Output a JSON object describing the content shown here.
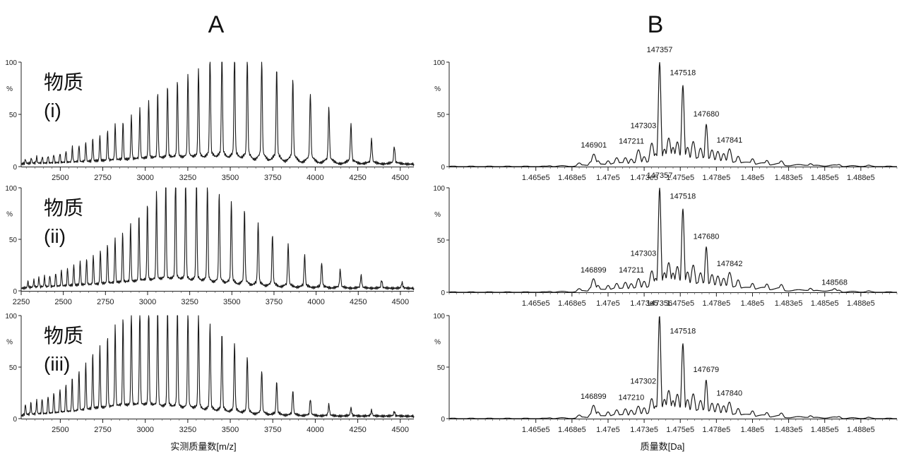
{
  "figure": {
    "panel_labels": [
      "A",
      "B"
    ],
    "xlabel_left": "实测质量数[m/z]",
    "xlabel_right": "质量数[Da]",
    "y_unit": "%",
    "y_ticks": [
      "0",
      "50",
      "100"
    ]
  },
  "chart_data": [
    {
      "panel": "A",
      "type": "line",
      "chart_title": "物质 (i)",
      "label_lines": [
        "物质",
        "(i)"
      ],
      "xlim": [
        2270,
        4580
      ],
      "ylim": [
        0,
        100
      ],
      "xticks": [
        "2500",
        "2750",
        "3000",
        "3250",
        "3500",
        "3750",
        "4000",
        "4250",
        "4500"
      ],
      "xtick_values": [
        2500,
        2750,
        3000,
        3250,
        3500,
        3750,
        4000,
        4250,
        4500
      ],
      "series": [
        {
          "x": [
            2295,
            2330,
            2361,
            2394,
            2428,
            2462,
            2498,
            2533,
            2571,
            2610,
            2650,
            2691,
            2733,
            2778,
            2823,
            2869,
            2918,
            2968,
            3020,
            3073,
            3131,
            3189,
            3251,
            3313,
            3381,
            3451,
            3525,
            3600,
            3685,
            3773,
            3868,
            3971,
            4080,
            4210,
            4331,
            4465
          ],
          "y": [
            4,
            5,
            6,
            6,
            7,
            8,
            9,
            11,
            14,
            16,
            18,
            21,
            24,
            28,
            33,
            36,
            41,
            47,
            54,
            60,
            67,
            72,
            78,
            82,
            95,
            100,
            97,
            92,
            90,
            82,
            73,
            61,
            48,
            34,
            21,
            15
          ]
        }
      ]
    },
    {
      "panel": "A",
      "type": "line",
      "chart_title": "物质 (ii)",
      "label_lines": [
        "物质",
        "(ii)"
      ],
      "xlim": [
        2250,
        4580
      ],
      "ylim": [
        0,
        100
      ],
      "xticks": [
        "2250",
        "2500",
        "2750",
        "3000",
        "3250",
        "3500",
        "3750",
        "4000",
        "4250",
        "4500"
      ],
      "xtick_values": [
        2250,
        2500,
        2750,
        3000,
        3250,
        3500,
        3750,
        4000,
        4250,
        4500
      ],
      "series": [
        {
          "x": [
            2290,
            2325,
            2355,
            2388,
            2420,
            2455,
            2489,
            2525,
            2562,
            2600,
            2638,
            2678,
            2720,
            2762,
            2807,
            2852,
            2899,
            2949,
            2999,
            3053,
            3108,
            3166,
            3226,
            3290,
            3355,
            3425,
            3497,
            3575,
            3656,
            3741,
            3834,
            3932,
            4033,
            4143,
            4267,
            4389,
            4510
          ],
          "y": [
            6,
            7,
            9,
            10,
            11,
            13,
            15,
            17,
            20,
            23,
            25,
            28,
            32,
            38,
            43,
            48,
            55,
            63,
            73,
            83,
            92,
            100,
            97,
            95,
            90,
            83,
            76,
            68,
            57,
            47,
            38,
            29,
            22,
            16,
            11,
            7,
            5
          ]
        }
      ]
    },
    {
      "panel": "A",
      "type": "line",
      "chart_title": "物质 (iii)",
      "label_lines": [
        "物质",
        "(iii)"
      ],
      "xlim": [
        2270,
        4580
      ],
      "ylim": [
        0,
        100
      ],
      "xticks": [
        "2500",
        "2750",
        "3000",
        "3250",
        "3500",
        "3750",
        "4000",
        "4250",
        "4500"
      ],
      "xtick_values": [
        2500,
        2750,
        3000,
        3250,
        3500,
        3750,
        4000,
        4250,
        4500
      ],
      "series": [
        {
          "x": [
            2295,
            2327,
            2361,
            2393,
            2428,
            2462,
            2498,
            2533,
            2570,
            2610,
            2650,
            2691,
            2733,
            2778,
            2823,
            2869,
            2918,
            2968,
            3020,
            3073,
            3131,
            3189,
            3251,
            3313,
            3381,
            3451,
            3525,
            3600,
            3685,
            3773,
            3868,
            3971,
            4080,
            4210,
            4331,
            4465
          ],
          "y": [
            10,
            11,
            13,
            15,
            17,
            20,
            23,
            27,
            32,
            39,
            45,
            53,
            60,
            68,
            77,
            85,
            92,
            97,
            100,
            98,
            99,
            96,
            92,
            88,
            80,
            72,
            63,
            52,
            40,
            30,
            22,
            15,
            10,
            7,
            5,
            4
          ]
        }
      ]
    },
    {
      "panel": "B",
      "type": "line",
      "xlim": [
        145900,
        149000
      ],
      "ylim": [
        0,
        100
      ],
      "xticks": [
        "1.465e5",
        "1.468e5",
        "1.47e5",
        "1.473e5",
        "1.475e5",
        "1.478e5",
        "1.48e5",
        "1.483e5",
        "1.485e5",
        "1.488e5"
      ],
      "xtick_values": [
        146500,
        146750,
        147000,
        147250,
        147500,
        147750,
        148000,
        148250,
        148500,
        148750
      ],
      "series": [
        {
          "x": [
            145950,
            146300,
            146600,
            146800,
            146880,
            146901,
            146930,
            147000,
            147060,
            147120,
            147160,
            147211,
            147250,
            147303,
            147330,
            147357,
            147390,
            147420,
            147450,
            147480,
            147518,
            147550,
            147590,
            147640,
            147680,
            147720,
            147760,
            147800,
            147841,
            147900,
            148000,
            148100,
            148200,
            148400,
            148600,
            148800,
            149000
          ],
          "y": [
            0,
            0,
            1,
            3,
            5,
            12,
            5,
            6,
            8,
            9,
            7,
            16,
            10,
            22,
            12,
            100,
            17,
            27,
            18,
            24,
            78,
            18,
            24,
            18,
            40,
            16,
            15,
            12,
            17,
            10,
            8,
            6,
            5,
            3,
            2,
            1,
            0
          ]
        }
      ],
      "annotations": [
        {
          "text": "146901",
          "x": 146901,
          "y": 12
        },
        {
          "text": "147211",
          "x": 147211,
          "y": 16
        },
        {
          "text": "147303",
          "x": 147303,
          "y": 22
        },
        {
          "text": "147357",
          "x": 147357,
          "y": 100
        },
        {
          "text": "147518",
          "x": 147518,
          "y": 78
        },
        {
          "text": "147680",
          "x": 147680,
          "y": 40
        },
        {
          "text": "147841",
          "x": 147841,
          "y": 17
        }
      ]
    },
    {
      "panel": "B",
      "type": "line",
      "xlim": [
        145900,
        149000
      ],
      "ylim": [
        0,
        100
      ],
      "xticks": [
        "1.465e5",
        "1.468e5",
        "1.47e5",
        "1.473e5",
        "1.475e5",
        "1.478e5",
        "1.48e5",
        "1.483e5",
        "1.485e5",
        "1.488e5"
      ],
      "xtick_values": [
        146500,
        146750,
        147000,
        147250,
        147500,
        147750,
        148000,
        148250,
        148500,
        148750
      ],
      "series": [
        {
          "x": [
            145950,
            146300,
            146600,
            146800,
            146880,
            146899,
            146930,
            147000,
            147060,
            147120,
            147160,
            147211,
            147250,
            147303,
            147330,
            147357,
            147390,
            147420,
            147450,
            147480,
            147518,
            147550,
            147590,
            147640,
            147680,
            147720,
            147760,
            147800,
            147842,
            147900,
            148000,
            148100,
            148200,
            148400,
            148568,
            148600,
            148800,
            149000
          ],
          "y": [
            0,
            0,
            1,
            3,
            5,
            13,
            6,
            7,
            8,
            10,
            8,
            13,
            11,
            20,
            13,
            100,
            19,
            28,
            18,
            25,
            80,
            19,
            26,
            19,
            43,
            17,
            16,
            13,
            19,
            12,
            9,
            8,
            7,
            4,
            3,
            2,
            1,
            0
          ]
        }
      ],
      "annotations": [
        {
          "text": "146899",
          "x": 146899,
          "y": 13
        },
        {
          "text": "147211",
          "x": 147211,
          "y": 13
        },
        {
          "text": "147303",
          "x": 147303,
          "y": 20
        },
        {
          "text": "147357",
          "x": 147357,
          "y": 100
        },
        {
          "text": "147518",
          "x": 147518,
          "y": 80
        },
        {
          "text": "147680",
          "x": 147680,
          "y": 43
        },
        {
          "text": "147842",
          "x": 147842,
          "y": 19
        },
        {
          "text": "148568",
          "x": 148568,
          "y": 3
        }
      ]
    },
    {
      "panel": "B",
      "type": "line",
      "xlim": [
        145900,
        149000
      ],
      "ylim": [
        0,
        100
      ],
      "xticks": [
        "1.465e5",
        "1.468e5",
        "1.47e5",
        "1.473e5",
        "1.475e5",
        "1.478e5",
        "1.48e5",
        "1.483e5",
        "1.485e5",
        "1.488e5"
      ],
      "xtick_values": [
        146500,
        146750,
        147000,
        147250,
        147500,
        147750,
        148000,
        148250,
        148500,
        148750
      ],
      "series": [
        {
          "x": [
            145950,
            146300,
            146600,
            146800,
            146880,
            146899,
            146930,
            147000,
            147060,
            147120,
            147160,
            147210,
            147250,
            147302,
            147330,
            147356,
            147390,
            147420,
            147450,
            147480,
            147518,
            147550,
            147590,
            147640,
            147679,
            147720,
            147760,
            147800,
            147840,
            147900,
            148000,
            148100,
            148200,
            148400,
            148600,
            148800,
            149000
          ],
          "y": [
            0,
            0,
            1,
            3,
            5,
            13,
            6,
            7,
            8,
            10,
            8,
            12,
            11,
            19,
            12,
            100,
            19,
            27,
            17,
            24,
            73,
            18,
            24,
            18,
            37,
            15,
            15,
            12,
            16,
            10,
            8,
            6,
            5,
            3,
            2,
            1,
            0
          ]
        }
      ],
      "annotations": [
        {
          "text": "146899",
          "x": 146899,
          "y": 13
        },
        {
          "text": "147210",
          "x": 147210,
          "y": 12
        },
        {
          "text": "147302",
          "x": 147302,
          "y": 19
        },
        {
          "text": "147356",
          "x": 147356,
          "y": 100
        },
        {
          "text": "147518",
          "x": 147518,
          "y": 73
        },
        {
          "text": "147679",
          "x": 147679,
          "y": 37
        },
        {
          "text": "147840",
          "x": 147840,
          "y": 16
        }
      ]
    }
  ]
}
